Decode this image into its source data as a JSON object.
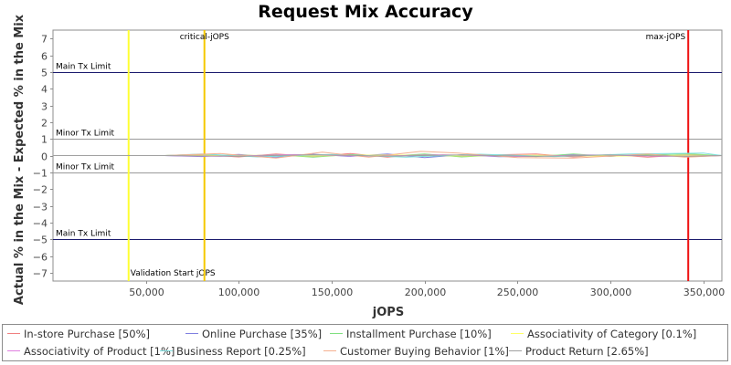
{
  "chart_data": {
    "type": "line",
    "title": "Request Mix Accuracy",
    "xlabel": "jOPS",
    "ylabel": "Actual % in the Mix - Expected % in the Mix",
    "xlim": [
      0,
      360000
    ],
    "ylim": [
      -7.5,
      7.5
    ],
    "x_ticks": [
      50000,
      100000,
      150000,
      200000,
      250000,
      300000,
      350000
    ],
    "x_tick_labels": [
      "50,000",
      "100,000",
      "150,000",
      "200,000",
      "250,000",
      "300,000",
      "350,000"
    ],
    "y_ticks": [
      7,
      6,
      5,
      4,
      3,
      2,
      1,
      0,
      -1,
      -2,
      -3,
      -4,
      -5,
      -6,
      -7
    ],
    "y_tick_labels": [
      "7",
      "6",
      "5",
      "4",
      "3",
      "2",
      "1",
      "0",
      "−1",
      "−2",
      "−3",
      "−4",
      "−5",
      "−6",
      "−7"
    ],
    "grid": false,
    "legend_position": "bottom",
    "reference_lines": [
      {
        "axis": "y",
        "value": 5,
        "label": "Main Tx Limit",
        "color": "#1c1c6e"
      },
      {
        "axis": "y",
        "value": 1,
        "label": "Minor Tx Limit",
        "color": "#9a9a9a"
      },
      {
        "axis": "y",
        "value": -1,
        "label": "Minor Tx Limit",
        "color": "#9a9a9a"
      },
      {
        "axis": "y",
        "value": -5,
        "label": "Main Tx Limit",
        "color": "#1c1c6e"
      },
      {
        "axis": "x",
        "value": 40700,
        "label": "Validation Start jOPS",
        "color": "#ffff33"
      },
      {
        "axis": "x",
        "value": 81500,
        "label": "critical-jOPS",
        "color": "#f5c800"
      },
      {
        "axis": "x",
        "value": 341900,
        "label": "max-jOPS",
        "color": "#ee1111"
      }
    ],
    "series": [
      {
        "name": "In-store Purchase [50%]",
        "color": "#f08080",
        "x": [
          0,
          60000,
          80000,
          100000,
          120000,
          140000,
          160000,
          180000,
          200000,
          220000,
          240000,
          260000,
          280000,
          300000,
          320000,
          341900,
          360000
        ],
        "y": [
          0,
          0,
          0.05,
          -0.08,
          0.1,
          -0.05,
          0.12,
          -0.1,
          0.08,
          -0.06,
          0.05,
          0.1,
          -0.08,
          0.06,
          -0.1,
          0.05,
          0
        ]
      },
      {
        "name": "Online Purchase [35%]",
        "color": "#8080e0",
        "x": [
          0,
          60000,
          80000,
          100000,
          120000,
          140000,
          160000,
          180000,
          200000,
          220000,
          240000,
          260000,
          280000,
          300000,
          320000,
          341900,
          360000
        ],
        "y": [
          0,
          0,
          -0.06,
          0.07,
          -0.1,
          0.08,
          -0.05,
          0.09,
          -0.12,
          0.05,
          -0.07,
          -0.04,
          0.06,
          -0.05,
          0.08,
          -0.06,
          0
        ]
      },
      {
        "name": "Installment Purchase [10%]",
        "color": "#80e080",
        "x": [
          0,
          60000,
          80000,
          100000,
          120000,
          140000,
          160000,
          180000,
          200000,
          220000,
          240000,
          260000,
          280000,
          300000,
          320000,
          341900,
          360000
        ],
        "y": [
          0,
          0,
          0.08,
          -0.04,
          0.05,
          -0.09,
          0.06,
          -0.03,
          0.1,
          -0.08,
          0.04,
          -0.06,
          0.09,
          -0.04,
          0.05,
          0.1,
          0
        ]
      },
      {
        "name": "Associativity of Category [0.1%]",
        "color": "#ffff66",
        "x": [
          0,
          60000,
          100000,
          140000,
          180000,
          220000,
          260000,
          300000,
          341900,
          360000
        ],
        "y": [
          0,
          0,
          0.02,
          -0.02,
          0.03,
          -0.02,
          0.02,
          -0.03,
          0.02,
          0
        ]
      },
      {
        "name": "Associativity of Product [1%]",
        "color": "#e080e0",
        "x": [
          0,
          60000,
          90000,
          130000,
          170000,
          210000,
          250000,
          290000,
          330000,
          360000
        ],
        "y": [
          0,
          0,
          -0.05,
          0.06,
          -0.04,
          0.05,
          -0.06,
          0.04,
          -0.05,
          0
        ]
      },
      {
        "name": "Business Report [0.25%]",
        "color": "#80e0e0",
        "x": [
          0,
          60000,
          80000,
          110000,
          150000,
          190000,
          230000,
          270000,
          310000,
          350000,
          360000
        ],
        "y": [
          0,
          0,
          0.1,
          -0.08,
          0.07,
          -0.1,
          0.08,
          -0.06,
          0.1,
          0.15,
          0
        ]
      },
      {
        "name": "Customer Buying Behavior [1%]",
        "color": "#f5b090",
        "x": [
          0,
          60000,
          90000,
          120000,
          145000,
          170000,
          198000,
          218000,
          250000,
          280000,
          320000,
          340000,
          360000
        ],
        "y": [
          0,
          0,
          0.12,
          -0.15,
          0.2,
          -0.1,
          0.25,
          0.15,
          -0.12,
          -0.15,
          0.1,
          -0.1,
          0
        ]
      },
      {
        "name": "Product Return [2.65%]",
        "color": "#a0a0a0",
        "x": [
          0,
          60000,
          100000,
          140000,
          180000,
          220000,
          260000,
          300000,
          341900,
          360000
        ],
        "y": [
          0,
          0,
          -0.04,
          0.05,
          -0.03,
          0.04,
          -0.05,
          0.03,
          -0.04,
          0
        ]
      }
    ]
  }
}
